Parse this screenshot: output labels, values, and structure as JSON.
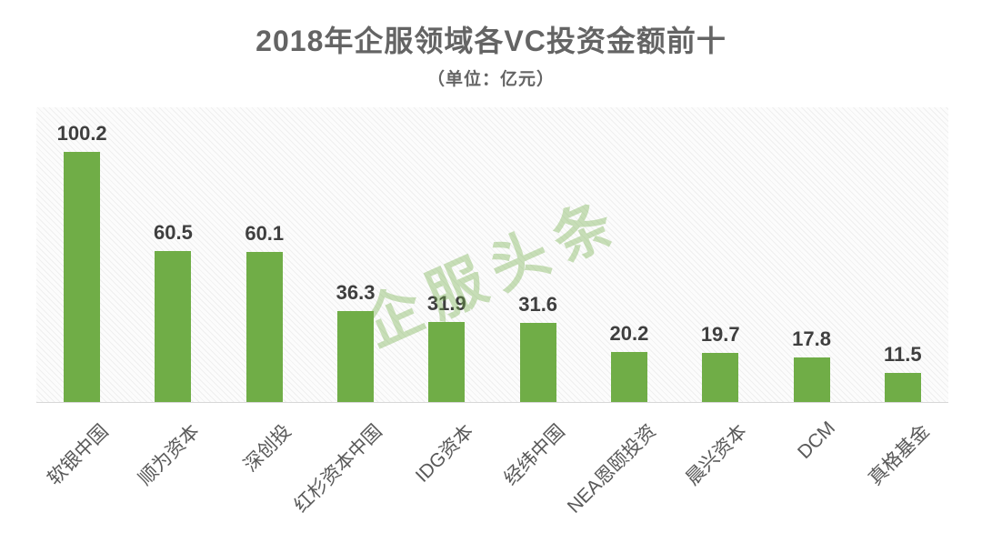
{
  "title": "2018年企服领域各VC投资金额前十",
  "subtitle": "（单位：亿元）",
  "watermark": "企服头条",
  "colors": {
    "bar": "#70ad47",
    "title_text": "#646464",
    "value_label_text": "#3f3f3f",
    "category_label_text": "#595959",
    "axis_line": "#d8d8d8",
    "watermark": "rgba(112,173,71,0.38)"
  },
  "chart_data": {
    "type": "bar",
    "title": "2018年企服领域各VC投资金额前十",
    "subtitle": "（单位：亿元）",
    "unit": "亿元",
    "categories": [
      "软银中国",
      "顺为资本",
      "深创投",
      "红杉资本中国",
      "IDG资本",
      "经纬中国",
      "NEA恩颐投资",
      "晨兴资本",
      "DCM",
      "真格基金"
    ],
    "values": [
      100.2,
      60.5,
      60.1,
      36.3,
      31.9,
      31.6,
      20.2,
      19.7,
      17.8,
      11.5
    ],
    "bar_color": "#70ad47",
    "ylim": [
      0,
      110
    ],
    "grid": false,
    "legend": false,
    "value_labels": true,
    "category_label_rotation_deg": 45,
    "plot_background": "light-diagonal-hatch"
  }
}
